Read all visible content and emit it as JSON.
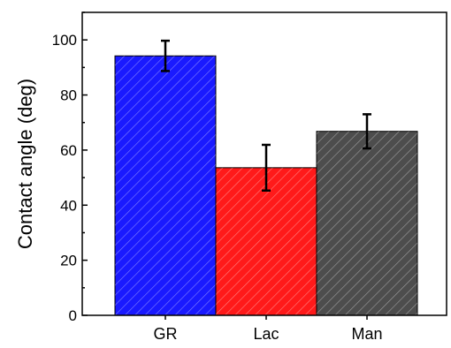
{
  "chart_data": {
    "type": "bar",
    "title": "",
    "xlabel": "",
    "ylabel": "Contact angle (deg)",
    "ylim": [
      0,
      110
    ],
    "yticks": [
      0,
      20,
      40,
      60,
      80,
      100
    ],
    "categories": [
      "GR",
      "Lac",
      "Man"
    ],
    "values": [
      94.2,
      53.6,
      66.8
    ],
    "errors": [
      5.5,
      8.3,
      6.2
    ],
    "bar_colors": [
      "#1a1aff",
      "#ff1a1a",
      "#4d4d4d"
    ],
    "bar_pattern": "diagonal-hatch",
    "grid": false,
    "legend": "none"
  }
}
